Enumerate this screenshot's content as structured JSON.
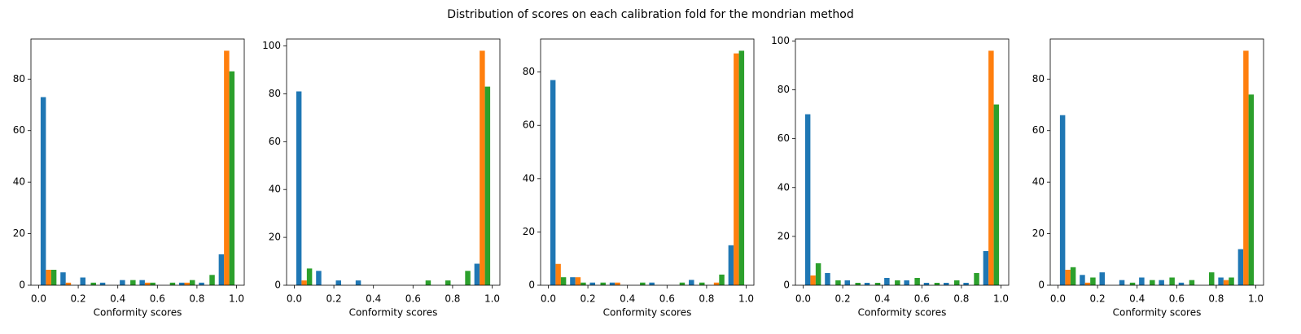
{
  "title": "Distribution of scores on each calibration fold for the mondrian method",
  "chart_data": [
    {
      "type": "histogram",
      "xlabel": "Conformity scores",
      "bins": [
        0,
        0.1,
        0.2,
        0.3,
        0.4,
        0.5,
        0.6,
        0.7,
        0.8,
        0.9,
        1.0
      ],
      "series": [
        {
          "color": "#1f77b4",
          "values": [
            73,
            5,
            3,
            1,
            2,
            2,
            0,
            1,
            1,
            12
          ]
        },
        {
          "color": "#ff7f0e",
          "values": [
            6,
            1,
            0,
            0,
            0,
            1,
            0,
            1,
            0,
            91
          ]
        },
        {
          "color": "#2ca02c",
          "values": [
            6,
            0,
            1,
            0,
            2,
            1,
            1,
            2,
            4,
            83
          ]
        }
      ],
      "xlim": [
        -0.039,
        1.039
      ],
      "ylim": [
        0,
        95.55
      ],
      "xticks": [
        {
          "value": 0,
          "label": "0.0"
        },
        {
          "value": 0.2,
          "label": "0.2"
        },
        {
          "value": 0.4,
          "label": "0.4"
        },
        {
          "value": 0.6,
          "label": "0.6"
        },
        {
          "value": 0.8,
          "label": "0.8"
        },
        {
          "value": 1,
          "label": "1.0"
        }
      ],
      "yticks": [
        0,
        20,
        40,
        60,
        80
      ]
    },
    {
      "type": "histogram",
      "xlabel": "Conformity scores",
      "bins": [
        0,
        0.1,
        0.2,
        0.3,
        0.4,
        0.5,
        0.6,
        0.7,
        0.8,
        0.9,
        1.0
      ],
      "series": [
        {
          "color": "#1f77b4",
          "values": [
            81,
            6,
            2,
            2,
            0,
            0,
            0,
            0,
            0,
            9
          ]
        },
        {
          "color": "#ff7f0e",
          "values": [
            2,
            0,
            0,
            0,
            0,
            0,
            0,
            0,
            0,
            98
          ]
        },
        {
          "color": "#2ca02c",
          "values": [
            7,
            0,
            0,
            0,
            0,
            0,
            2,
            2,
            6,
            83
          ]
        }
      ],
      "xlim": [
        -0.039,
        1.039
      ],
      "ylim": [
        0,
        102.9
      ],
      "xticks": [
        {
          "value": 0,
          "label": "0.0"
        },
        {
          "value": 0.2,
          "label": "0.2"
        },
        {
          "value": 0.4,
          "label": "0.4"
        },
        {
          "value": 0.6,
          "label": "0.6"
        },
        {
          "value": 0.8,
          "label": "0.8"
        },
        {
          "value": 1,
          "label": "1.0"
        }
      ],
      "yticks": [
        0,
        20,
        40,
        60,
        80,
        100
      ]
    },
    {
      "type": "histogram",
      "xlabel": "Conformity scores",
      "bins": [
        0,
        0.1,
        0.2,
        0.3,
        0.4,
        0.5,
        0.6,
        0.7,
        0.8,
        0.9,
        1.0
      ],
      "series": [
        {
          "color": "#1f77b4",
          "values": [
            77,
            3,
            1,
            1,
            0,
            1,
            0,
            2,
            0,
            15
          ]
        },
        {
          "color": "#ff7f0e",
          "values": [
            8,
            3,
            0,
            1,
            0,
            0,
            0,
            0,
            1,
            87
          ]
        },
        {
          "color": "#2ca02c",
          "values": [
            3,
            1,
            1,
            0,
            1,
            0,
            1,
            1,
            4,
            88
          ]
        }
      ],
      "xlim": [
        -0.039,
        1.039
      ],
      "ylim": [
        0,
        92.4
      ],
      "xticks": [
        {
          "value": 0,
          "label": "0.0"
        },
        {
          "value": 0.2,
          "label": "0.2"
        },
        {
          "value": 0.4,
          "label": "0.4"
        },
        {
          "value": 0.6,
          "label": "0.6"
        },
        {
          "value": 0.8,
          "label": "0.8"
        },
        {
          "value": 1,
          "label": "1.0"
        }
      ],
      "yticks": [
        0,
        20,
        40,
        60,
        80
      ]
    },
    {
      "type": "histogram",
      "xlabel": "Conformity scores",
      "bins": [
        0,
        0.1,
        0.2,
        0.3,
        0.4,
        0.5,
        0.6,
        0.7,
        0.8,
        0.9,
        1.0
      ],
      "series": [
        {
          "color": "#1f77b4",
          "values": [
            70,
            5,
            2,
            1,
            3,
            2,
            1,
            1,
            1,
            14
          ]
        },
        {
          "color": "#ff7f0e",
          "values": [
            4,
            0,
            0,
            0,
            0,
            0,
            0,
            0,
            0,
            96
          ]
        },
        {
          "color": "#2ca02c",
          "values": [
            9,
            2,
            1,
            1,
            2,
            3,
            1,
            2,
            5,
            74
          ]
        }
      ],
      "xlim": [
        -0.039,
        1.039
      ],
      "ylim": [
        0,
        100.8
      ],
      "xticks": [
        {
          "value": 0,
          "label": "0.0"
        },
        {
          "value": 0.2,
          "label": "0.2"
        },
        {
          "value": 0.4,
          "label": "0.4"
        },
        {
          "value": 0.6,
          "label": "0.6"
        },
        {
          "value": 0.8,
          "label": "0.8"
        },
        {
          "value": 1,
          "label": "1.0"
        }
      ],
      "yticks": [
        0,
        20,
        40,
        60,
        80,
        100
      ]
    },
    {
      "type": "histogram",
      "xlabel": "Conformity scores",
      "bins": [
        0,
        0.1,
        0.2,
        0.3,
        0.4,
        0.5,
        0.6,
        0.7,
        0.8,
        0.9,
        1.0
      ],
      "series": [
        {
          "color": "#1f77b4",
          "values": [
            66,
            4,
            5,
            2,
            3,
            2,
            1,
            0,
            3,
            14
          ]
        },
        {
          "color": "#ff7f0e",
          "values": [
            6,
            1,
            0,
            0,
            0,
            0,
            0,
            0,
            2,
            91
          ]
        },
        {
          "color": "#2ca02c",
          "values": [
            7,
            3,
            0,
            1,
            2,
            3,
            2,
            5,
            3,
            74
          ]
        }
      ],
      "xlim": [
        -0.039,
        1.039
      ],
      "ylim": [
        0,
        95.55
      ],
      "xticks": [
        {
          "value": 0,
          "label": "0.0"
        },
        {
          "value": 0.2,
          "label": "0.2"
        },
        {
          "value": 0.4,
          "label": "0.4"
        },
        {
          "value": 0.6,
          "label": "0.6"
        },
        {
          "value": 0.8,
          "label": "0.8"
        },
        {
          "value": 1,
          "label": "1.0"
        }
      ],
      "yticks": [
        0,
        20,
        40,
        60,
        80
      ]
    }
  ]
}
